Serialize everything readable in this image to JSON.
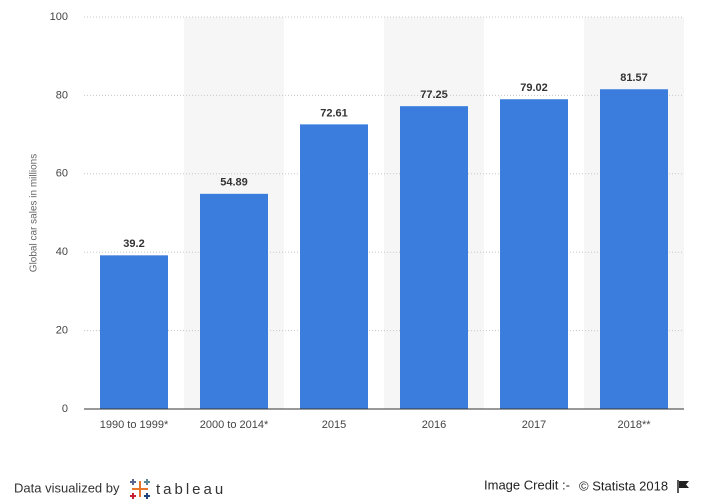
{
  "chart_data": {
    "type": "bar",
    "y_label": "Global car sales in millions",
    "categories": [
      "1990 to 1999*",
      "2000 to 2014*",
      "2015",
      "2016",
      "2017",
      "2018**"
    ],
    "values": [
      39.2,
      54.89,
      72.61,
      77.25,
      79.02,
      81.57
    ],
    "color": "#3b7ddd",
    "ylim": [
      0,
      100
    ],
    "yticks": [
      0,
      20,
      40,
      60,
      80,
      100
    ],
    "grid": true
  },
  "footer": {
    "left": "Data visualized by",
    "brand": "tableau",
    "credit": "Image Credit :-",
    "source": "© Statista 2018"
  }
}
